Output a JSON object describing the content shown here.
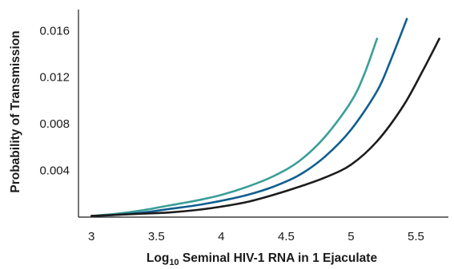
{
  "chart_data": {
    "type": "line",
    "xlabel": {
      "prefix": "Log",
      "subscript": "10",
      "suffix": " Seminal HIV-1 RNA in 1 Ejaculate"
    },
    "ylabel": "Probability of Transmission",
    "xlim": [
      2.9,
      5.75
    ],
    "ylim": [
      0.0,
      0.0178
    ],
    "x_ticks": [
      3,
      3.5,
      4,
      4.5,
      5,
      5.5
    ],
    "x_tick_labels": [
      "3",
      "3.5",
      "4",
      "4.5",
      "5",
      "5.5"
    ],
    "y_ticks": [
      0.004,
      0.008,
      0.012,
      0.016
    ],
    "y_tick_labels": [
      "0.004",
      "0.008",
      "0.012",
      "0.016"
    ],
    "grid": false,
    "series": [
      {
        "color": "#3a9e98",
        "x": [
          3.0,
          3.2,
          3.4,
          3.6,
          3.8,
          4.0,
          4.2,
          4.4,
          4.6,
          4.8,
          5.0,
          5.1,
          5.2
        ],
        "y": [
          0.0001,
          0.0003,
          0.0006,
          0.001,
          0.0014,
          0.0019,
          0.0026,
          0.0035,
          0.0048,
          0.0069,
          0.0099,
          0.0122,
          0.0153
        ]
      },
      {
        "color": "#0f5f8f",
        "x": [
          3.0,
          3.2,
          3.4,
          3.6,
          3.8,
          4.0,
          4.2,
          4.4,
          4.6,
          4.8,
          5.0,
          5.2,
          5.3,
          5.43
        ],
        "y": [
          0.0001,
          0.0002,
          0.0004,
          0.0007,
          0.001,
          0.0014,
          0.0019,
          0.0026,
          0.0036,
          0.0052,
          0.0075,
          0.0108,
          0.0133,
          0.017
        ]
      },
      {
        "color": "#1c1c1c",
        "x": [
          3.0,
          3.2,
          3.4,
          3.6,
          3.8,
          4.0,
          4.2,
          4.4,
          4.6,
          4.8,
          5.0,
          5.2,
          5.4,
          5.55,
          5.68
        ],
        "y": [
          0.0001,
          0.0002,
          0.0003,
          0.0004,
          0.0006,
          0.0009,
          0.0013,
          0.0019,
          0.0026,
          0.0034,
          0.0045,
          0.0065,
          0.0095,
          0.0125,
          0.0153
        ]
      }
    ]
  }
}
